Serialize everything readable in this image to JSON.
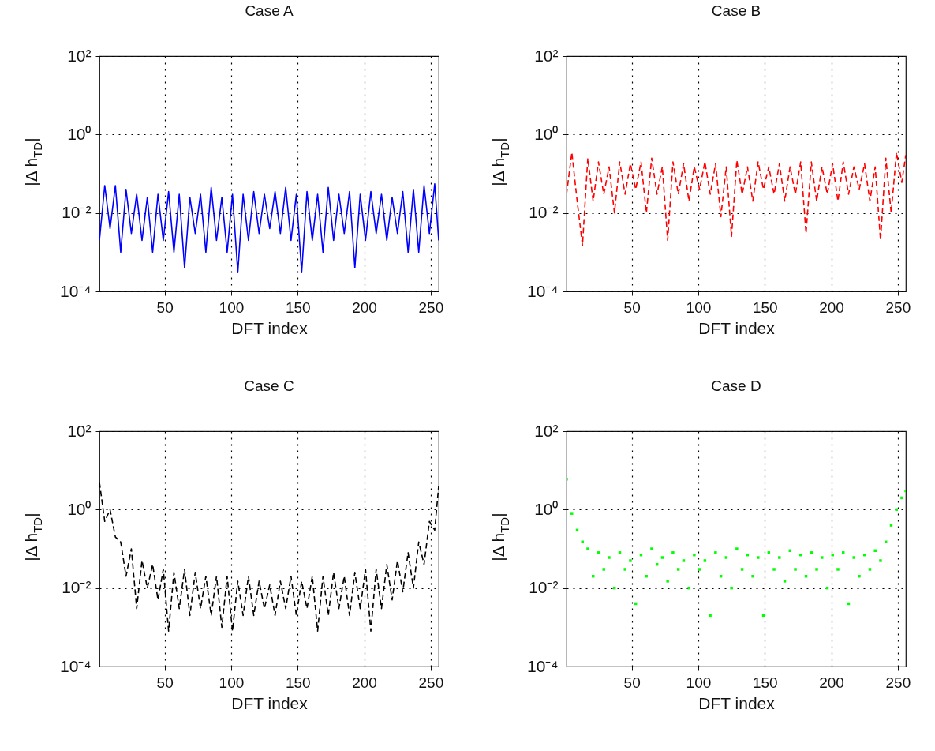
{
  "chart_data": [
    {
      "type": "line",
      "title": "Case A",
      "xlabel": "DFT index",
      "ylabel": "|Δ h$_{TD}$|",
      "log": true,
      "grid": true,
      "line_style": "solid",
      "color": "#0000ff",
      "xlim": [
        1,
        256
      ],
      "xticks": [
        50,
        100,
        150,
        200,
        250
      ],
      "ylim": [
        0.0001,
        100
      ],
      "yticks": [
        {
          "value": 0.0001,
          "label": "10⁻⁴"
        },
        {
          "value": 0.01,
          "label": "10⁻²"
        },
        {
          "value": 1,
          "label": "10⁰"
        },
        {
          "value": 100,
          "label": "10²"
        }
      ],
      "x": [
        1,
        5,
        9,
        13,
        17,
        21,
        25,
        29,
        33,
        37,
        41,
        45,
        49,
        53,
        57,
        61,
        65,
        69,
        73,
        77,
        81,
        85,
        89,
        93,
        97,
        101,
        105,
        109,
        113,
        117,
        121,
        125,
        129,
        133,
        137,
        141,
        145,
        149,
        153,
        157,
        161,
        165,
        169,
        173,
        177,
        181,
        185,
        189,
        193,
        197,
        201,
        205,
        209,
        213,
        217,
        221,
        225,
        229,
        233,
        237,
        241,
        245,
        249,
        253,
        256
      ],
      "values": [
        0.002,
        0.05,
        0.004,
        0.05,
        0.001,
        0.04,
        0.003,
        0.03,
        0.002,
        0.025,
        0.001,
        0.03,
        0.002,
        0.035,
        0.001,
        0.03,
        0.0004,
        0.025,
        0.003,
        0.03,
        0.001,
        0.045,
        0.002,
        0.025,
        0.001,
        0.03,
        0.0003,
        0.03,
        0.002,
        0.035,
        0.003,
        0.03,
        0.004,
        0.035,
        0.003,
        0.045,
        0.002,
        0.03,
        0.0003,
        0.035,
        0.002,
        0.03,
        0.001,
        0.045,
        0.002,
        0.03,
        0.003,
        0.035,
        0.0004,
        0.03,
        0.002,
        0.035,
        0.003,
        0.03,
        0.002,
        0.025,
        0.003,
        0.035,
        0.001,
        0.04,
        0.001,
        0.05,
        0.003,
        0.055,
        0.002
      ]
    },
    {
      "type": "line",
      "title": "Case B",
      "xlabel": "DFT index",
      "ylabel": "|Δ h$_{TD}$|",
      "log": true,
      "grid": true,
      "line_style": "dashed",
      "color": "#ff0000",
      "xlim": [
        1,
        256
      ],
      "xticks": [
        50,
        100,
        150,
        200,
        250
      ],
      "ylim": [
        0.0001,
        100
      ],
      "yticks": [
        {
          "value": 0.0001,
          "label": "10⁻⁴"
        },
        {
          "value": 0.01,
          "label": "10⁻²"
        },
        {
          "value": 1,
          "label": "10⁰"
        },
        {
          "value": 100,
          "label": "10²"
        }
      ],
      "x": [
        1,
        5,
        9,
        13,
        17,
        21,
        25,
        29,
        33,
        37,
        41,
        45,
        49,
        53,
        57,
        61,
        65,
        69,
        73,
        77,
        81,
        85,
        89,
        93,
        97,
        101,
        105,
        109,
        113,
        117,
        121,
        125,
        129,
        133,
        137,
        141,
        145,
        149,
        153,
        157,
        161,
        165,
        169,
        173,
        177,
        181,
        185,
        189,
        193,
        197,
        201,
        205,
        209,
        213,
        217,
        221,
        225,
        229,
        233,
        237,
        241,
        245,
        249,
        253,
        256
      ],
      "values": [
        0.03,
        0.35,
        0.02,
        0.0015,
        0.25,
        0.02,
        0.2,
        0.03,
        0.15,
        0.01,
        0.2,
        0.03,
        0.18,
        0.04,
        0.2,
        0.01,
        0.25,
        0.03,
        0.15,
        0.002,
        0.2,
        0.03,
        0.18,
        0.02,
        0.15,
        0.04,
        0.2,
        0.03,
        0.18,
        0.008,
        0.15,
        0.0025,
        0.22,
        0.03,
        0.15,
        0.02,
        0.2,
        0.04,
        0.15,
        0.03,
        0.18,
        0.02,
        0.15,
        0.03,
        0.2,
        0.003,
        0.2,
        0.02,
        0.15,
        0.03,
        0.18,
        0.02,
        0.2,
        0.03,
        0.15,
        0.04,
        0.18,
        0.02,
        0.15,
        0.002,
        0.25,
        0.01,
        0.35,
        0.06,
        0.3
      ]
    },
    {
      "type": "line",
      "title": "Case C",
      "xlabel": "DFT index",
      "ylabel": "|Δ h$_{TD}$|",
      "log": true,
      "grid": true,
      "line_style": "dashed",
      "color": "#000000",
      "xlim": [
        1,
        256
      ],
      "xticks": [
        50,
        100,
        150,
        200,
        250
      ],
      "ylim": [
        0.0001,
        100
      ],
      "yticks": [
        {
          "value": 0.0001,
          "label": "10⁻⁴"
        },
        {
          "value": 0.01,
          "label": "10⁻²"
        },
        {
          "value": 1,
          "label": "10⁰"
        },
        {
          "value": 100,
          "label": "10²"
        }
      ],
      "x": [
        1,
        5,
        9,
        13,
        17,
        21,
        25,
        29,
        33,
        37,
        41,
        45,
        49,
        53,
        57,
        61,
        65,
        69,
        73,
        77,
        81,
        85,
        89,
        93,
        97,
        101,
        105,
        109,
        113,
        117,
        121,
        125,
        129,
        133,
        137,
        141,
        145,
        149,
        153,
        157,
        161,
        165,
        169,
        173,
        177,
        181,
        185,
        189,
        193,
        197,
        201,
        205,
        209,
        213,
        217,
        221,
        225,
        229,
        233,
        237,
        241,
        245,
        249,
        253,
        256
      ],
      "values": [
        5,
        0.5,
        1,
        0.2,
        0.15,
        0.02,
        0.1,
        0.003,
        0.05,
        0.01,
        0.04,
        0.005,
        0.03,
        0.0008,
        0.025,
        0.003,
        0.03,
        0.002,
        0.025,
        0.003,
        0.02,
        0.002,
        0.02,
        0.001,
        0.02,
        0.0008,
        0.015,
        0.002,
        0.02,
        0.002,
        0.015,
        0.003,
        0.012,
        0.002,
        0.015,
        0.003,
        0.02,
        0.002,
        0.015,
        0.003,
        0.02,
        0.0008,
        0.02,
        0.002,
        0.025,
        0.003,
        0.02,
        0.002,
        0.025,
        0.003,
        0.03,
        0.0008,
        0.03,
        0.003,
        0.04,
        0.005,
        0.05,
        0.008,
        0.08,
        0.01,
        0.15,
        0.04,
        0.5,
        0.3,
        4
      ]
    },
    {
      "type": "scatter",
      "title": "Case D",
      "xlabel": "DFT index",
      "ylabel": "|Δ h$_{TD}$|",
      "log": true,
      "grid": true,
      "marker": "square",
      "color": "#00ff00",
      "xlim": [
        1,
        256
      ],
      "xticks": [
        50,
        100,
        150,
        200,
        250
      ],
      "ylim": [
        0.0001,
        100
      ],
      "yticks": [
        {
          "value": 0.0001,
          "label": "10⁻⁴"
        },
        {
          "value": 0.01,
          "label": "10⁻²"
        },
        {
          "value": 1,
          "label": "10⁰"
        },
        {
          "value": 100,
          "label": "10²"
        }
      ],
      "x": [
        1,
        5,
        9,
        13,
        17,
        21,
        25,
        29,
        33,
        37,
        41,
        45,
        49,
        53,
        57,
        61,
        65,
        69,
        73,
        77,
        81,
        85,
        89,
        93,
        97,
        101,
        105,
        109,
        113,
        117,
        121,
        125,
        129,
        133,
        137,
        141,
        145,
        149,
        153,
        157,
        161,
        165,
        169,
        173,
        177,
        181,
        185,
        189,
        193,
        197,
        201,
        205,
        209,
        213,
        217,
        221,
        225,
        229,
        233,
        237,
        241,
        245,
        249,
        253,
        256
      ],
      "values": [
        6,
        0.8,
        0.3,
        0.15,
        0.1,
        0.02,
        0.08,
        0.03,
        0.06,
        0.01,
        0.08,
        0.03,
        0.05,
        0.004,
        0.07,
        0.02,
        0.1,
        0.04,
        0.06,
        0.015,
        0.08,
        0.03,
        0.05,
        0.01,
        0.07,
        0.03,
        0.05,
        0.002,
        0.08,
        0.02,
        0.06,
        0.01,
        0.1,
        0.03,
        0.07,
        0.02,
        0.06,
        0.002,
        0.08,
        0.03,
        0.06,
        0.015,
        0.09,
        0.03,
        0.07,
        0.02,
        0.08,
        0.03,
        0.06,
        0.01,
        0.07,
        0.03,
        0.08,
        0.004,
        0.06,
        0.02,
        0.07,
        0.03,
        0.09,
        0.05,
        0.15,
        0.4,
        1,
        2,
        3
      ]
    }
  ]
}
